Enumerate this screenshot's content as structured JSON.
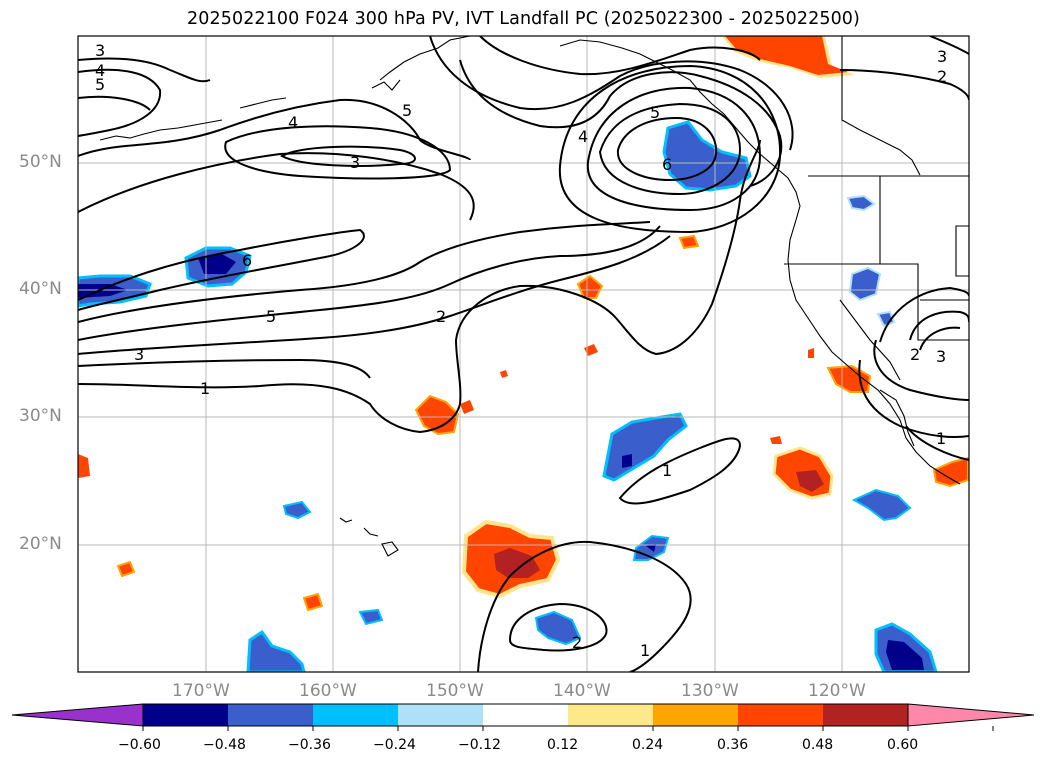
{
  "title": "2025022100 F024 300 hPa PV, IVT Landfall PC (2025022300 - 2025022500)",
  "lat_labels": [
    "50°N",
    "40°N",
    "30°N",
    "20°N"
  ],
  "lon_labels": [
    "170°W",
    "160°W",
    "150°W",
    "140°W",
    "130°W",
    "120°W"
  ],
  "contour_labels": [
    "1",
    "2",
    "3",
    "4",
    "5",
    "6"
  ],
  "colorbar": {
    "ticks": [
      "−0.60",
      "−0.48",
      "−0.36",
      "−0.24",
      "−0.12",
      "0.12",
      "0.24",
      "0.36",
      "0.48",
      "0.60"
    ],
    "colors": [
      "#9932cc",
      "#00008b",
      "#3a5fcd",
      "#00bfff",
      "#aee0f8",
      "#ffffff",
      "#fde98a",
      "#ffa500",
      "#ff4500",
      "#b22222",
      "#ff88aa"
    ]
  }
}
